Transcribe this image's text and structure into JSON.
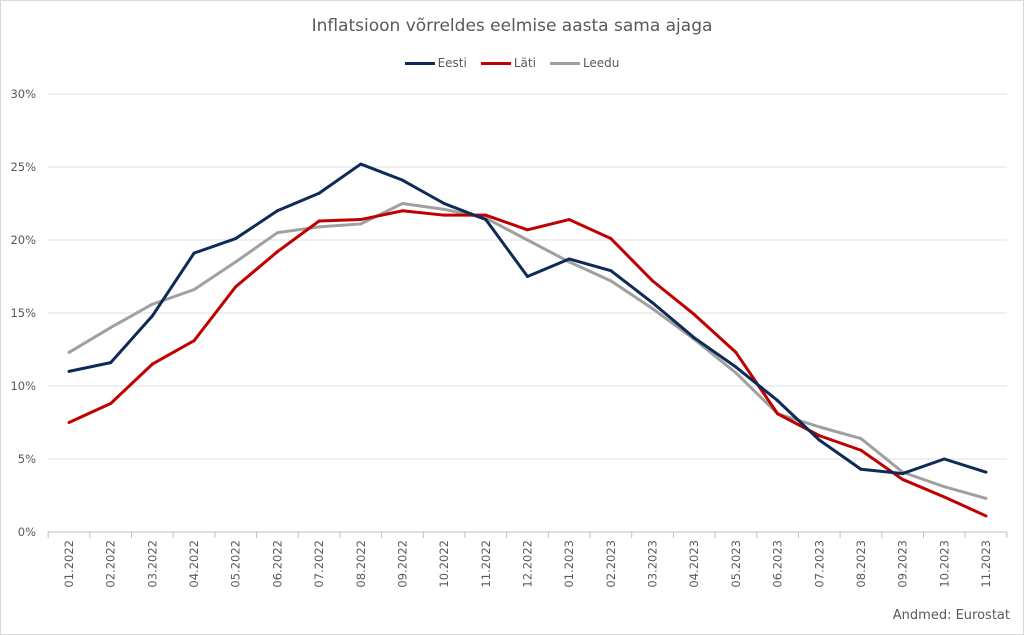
{
  "chart_data": {
    "type": "line",
    "title": "Inflatsioon võrreldes eelmise aasta sama ajaga",
    "source": "Andmed: Eurostat",
    "xlabel": "",
    "ylabel": "",
    "ylim": [
      0,
      30
    ],
    "yticks": [
      "0%",
      "5%",
      "10%",
      "15%",
      "20%",
      "25%",
      "30%"
    ],
    "grid": true,
    "legend_position": "top",
    "categories": [
      "01.2022",
      "02.2022",
      "03.2022",
      "04.2022",
      "05.2022",
      "06.2022",
      "07.2022",
      "08.2022",
      "09.2022",
      "10.2022",
      "11.2022",
      "12.2022",
      "01.2023",
      "02.2023",
      "03.2023",
      "04.2023",
      "05.2023",
      "06.2023",
      "07.2023",
      "08.2023",
      "09.2023",
      "10.2023",
      "11.2023"
    ],
    "series": [
      {
        "name": "Eesti",
        "color": "#0e2a56",
        "values": [
          11.0,
          11.6,
          14.8,
          19.1,
          20.1,
          22.0,
          23.2,
          25.2,
          24.1,
          22.5,
          21.4,
          17.5,
          18.7,
          17.9,
          15.7,
          13.3,
          11.3,
          9.0,
          6.3,
          4.3,
          4.0,
          5.0,
          4.1
        ]
      },
      {
        "name": "Läti",
        "color": "#c00000",
        "values": [
          7.5,
          8.8,
          11.5,
          13.1,
          16.8,
          19.2,
          21.3,
          21.4,
          22.0,
          21.7,
          21.7,
          20.7,
          21.4,
          20.1,
          17.2,
          14.9,
          12.3,
          8.1,
          6.6,
          5.6,
          3.6,
          2.4,
          1.1
        ]
      },
      {
        "name": "Leedu",
        "color": "#a0a0a0",
        "values": [
          12.3,
          14.0,
          15.6,
          16.6,
          18.5,
          20.5,
          20.9,
          21.1,
          22.5,
          22.1,
          21.5,
          20.0,
          18.5,
          17.2,
          15.3,
          13.2,
          10.9,
          8.1,
          7.2,
          6.4,
          4.1,
          3.1,
          2.3
        ]
      }
    ]
  }
}
